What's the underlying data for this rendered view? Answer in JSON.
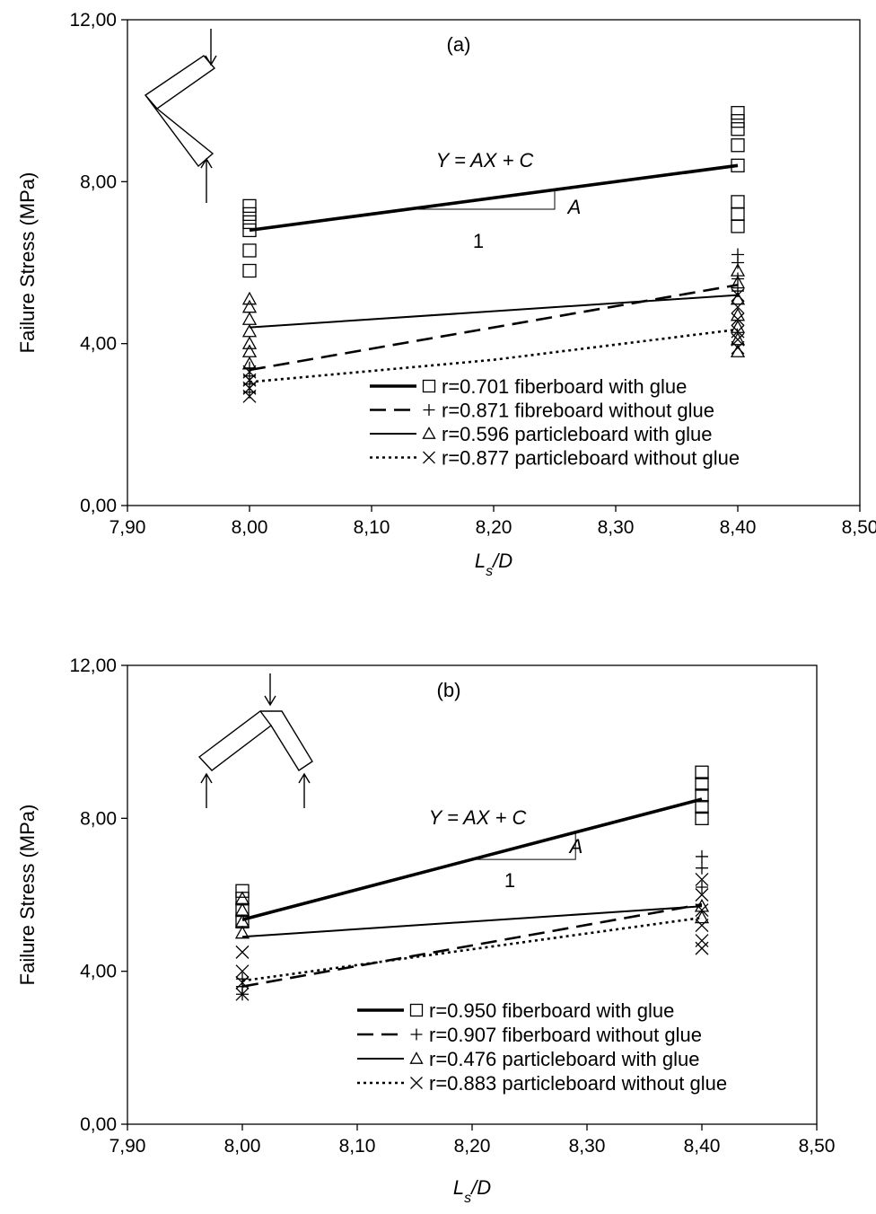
{
  "chart_data": [
    {
      "type": "scatter",
      "title": "(a)",
      "xlabel": "L s/D",
      "ylabel": "Failure Stress (MPa)",
      "xlim": [
        7.9,
        8.5
      ],
      "ylim": [
        0,
        12
      ],
      "x_ticks": [
        "7,90",
        "8,00",
        "8,10",
        "8,20",
        "8,30",
        "8,40",
        "8,50"
      ],
      "y_ticks": [
        "0,00",
        "4,00",
        "8,00",
        "12,00"
      ],
      "annotation": {
        "equation": "Y = AX + C",
        "slope_label": "A",
        "run_label": "1"
      },
      "legend_position": "bottom-right",
      "series": [
        {
          "name": "r=0.701 fiberboard with glue",
          "marker": "square",
          "line": "thick",
          "points": [
            [
              8.0,
              7.4
            ],
            [
              8.0,
              7.2
            ],
            [
              8.0,
              7.0
            ],
            [
              8.0,
              6.8
            ],
            [
              8.0,
              6.3
            ],
            [
              8.0,
              5.8
            ],
            [
              8.4,
              9.7
            ],
            [
              8.4,
              9.5
            ],
            [
              8.4,
              9.3
            ],
            [
              8.4,
              8.9
            ],
            [
              8.4,
              8.4
            ],
            [
              8.4,
              7.5
            ],
            [
              8.4,
              7.2
            ],
            [
              8.4,
              6.9
            ]
          ],
          "fit": [
            [
              8.0,
              6.8
            ],
            [
              8.4,
              8.4
            ]
          ]
        },
        {
          "name": "r=0.871 fibreboard without glue",
          "marker": "plus",
          "line": "dashed",
          "points": [
            [
              8.0,
              3.4
            ],
            [
              8.0,
              3.2
            ],
            [
              8.0,
              3.0
            ],
            [
              8.0,
              2.8
            ],
            [
              8.4,
              6.2
            ],
            [
              8.4,
              6.0
            ],
            [
              8.4,
              5.6
            ],
            [
              8.4,
              5.3
            ]
          ],
          "fit": [
            [
              8.0,
              3.35
            ],
            [
              8.4,
              5.45
            ]
          ]
        },
        {
          "name": "r=0.596 particleboard with glue",
          "marker": "triangle",
          "line": "thin",
          "points": [
            [
              8.0,
              5.1
            ],
            [
              8.0,
              4.9
            ],
            [
              8.0,
              4.6
            ],
            [
              8.0,
              4.3
            ],
            [
              8.0,
              4.0
            ],
            [
              8.0,
              3.8
            ],
            [
              8.0,
              3.5
            ],
            [
              8.4,
              5.8
            ],
            [
              8.4,
              5.5
            ],
            [
              8.4,
              5.1
            ],
            [
              8.4,
              4.7
            ],
            [
              8.4,
              4.4
            ],
            [
              8.4,
              4.1
            ],
            [
              8.4,
              3.8
            ]
          ],
          "fit": [
            [
              8.0,
              4.4
            ],
            [
              8.4,
              5.2
            ]
          ]
        },
        {
          "name": "r=0.877 particleboard without glue",
          "marker": "cross",
          "line": "dotted",
          "points": [
            [
              8.0,
              3.3
            ],
            [
              8.0,
              3.1
            ],
            [
              8.0,
              2.9
            ],
            [
              8.0,
              2.7
            ],
            [
              8.4,
              5.2
            ],
            [
              8.4,
              4.9
            ],
            [
              8.4,
              4.6
            ],
            [
              8.4,
              4.3
            ],
            [
              8.4,
              4.1
            ],
            [
              8.4,
              3.9
            ]
          ],
          "fit": [
            [
              8.0,
              3.05
            ],
            [
              8.2,
              3.6
            ],
            [
              8.4,
              4.35
            ]
          ]
        }
      ]
    },
    {
      "type": "scatter",
      "title": "(b)",
      "xlabel": "L s/D",
      "ylabel": "Failure Stress (MPa)",
      "xlim": [
        7.9,
        8.5
      ],
      "ylim": [
        0,
        12
      ],
      "x_ticks": [
        "7,90",
        "8,00",
        "8,10",
        "8,20",
        "8,30",
        "8,40",
        "8,50"
      ],
      "y_ticks": [
        "0,00",
        "4,00",
        "8,00",
        "12,00"
      ],
      "annotation": {
        "equation": "Y = AX + C",
        "slope_label": "A",
        "run_label": "1"
      },
      "legend_position": "bottom-right",
      "series": [
        {
          "name": "r=0.950 fiberboard with glue",
          "marker": "square",
          "line": "thick",
          "points": [
            [
              8.0,
              6.1
            ],
            [
              8.0,
              5.9
            ],
            [
              8.0,
              5.6
            ],
            [
              8.0,
              5.3
            ],
            [
              8.4,
              9.2
            ],
            [
              8.4,
              8.9
            ],
            [
              8.4,
              8.6
            ],
            [
              8.4,
              8.3
            ],
            [
              8.4,
              8.0
            ]
          ],
          "fit": [
            [
              8.0,
              5.35
            ],
            [
              8.4,
              8.5
            ]
          ]
        },
        {
          "name": "r=0.907 fiberboard without glue",
          "marker": "plus",
          "line": "dashed",
          "points": [
            [
              8.0,
              3.8
            ],
            [
              8.0,
              3.6
            ],
            [
              8.0,
              3.4
            ],
            [
              8.4,
              7.0
            ],
            [
              8.4,
              6.7
            ],
            [
              8.4,
              6.2
            ]
          ],
          "fit": [
            [
              8.0,
              3.6
            ],
            [
              8.4,
              5.75
            ]
          ]
        },
        {
          "name": "r=0.476 particleboard with glue",
          "marker": "triangle",
          "line": "thin",
          "points": [
            [
              8.0,
              5.9
            ],
            [
              8.0,
              5.6
            ],
            [
              8.0,
              5.3
            ],
            [
              8.0,
              5.0
            ],
            [
              8.4,
              5.7
            ],
            [
              8.4,
              5.4
            ]
          ],
          "fit": [
            [
              8.0,
              4.9
            ],
            [
              8.4,
              5.7
            ]
          ]
        },
        {
          "name": "r=0.883 particleboard without glue",
          "marker": "cross",
          "line": "dotted",
          "points": [
            [
              8.0,
              4.5
            ],
            [
              8.0,
              4.0
            ],
            [
              8.0,
              3.7
            ],
            [
              8.0,
              3.4
            ],
            [
              8.4,
              6.4
            ],
            [
              8.4,
              6.0
            ],
            [
              8.4,
              5.6
            ],
            [
              8.4,
              5.2
            ],
            [
              8.4,
              4.8
            ],
            [
              8.4,
              4.6
            ]
          ],
          "fit": [
            [
              8.0,
              3.75
            ],
            [
              8.4,
              5.4
            ]
          ]
        }
      ]
    }
  ]
}
